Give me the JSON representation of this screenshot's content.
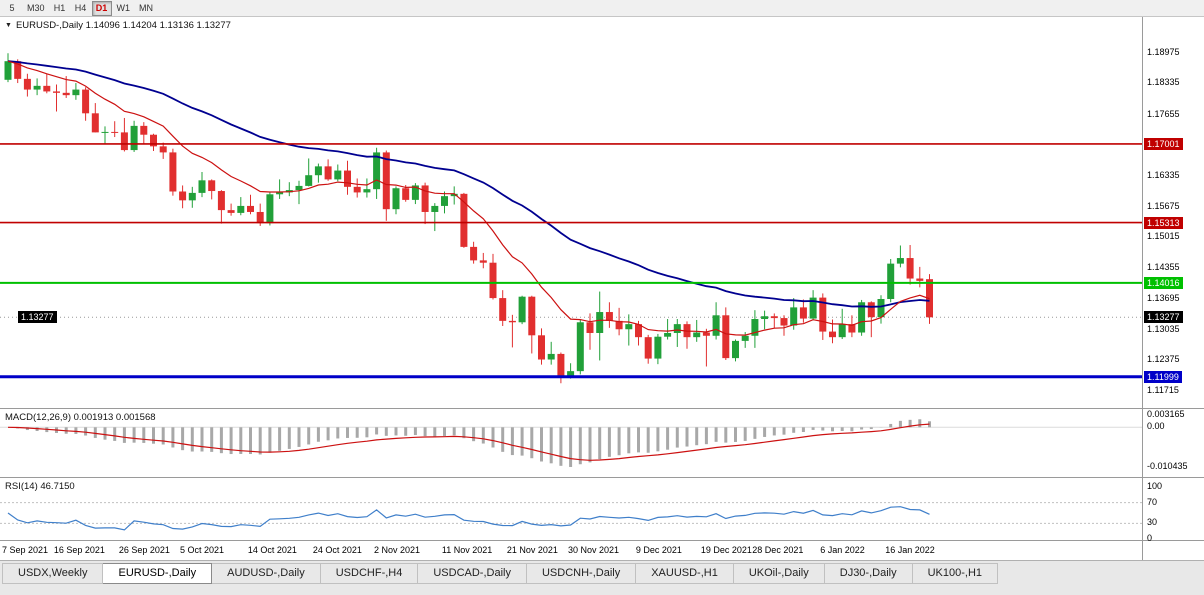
{
  "toolbar": {
    "timeframes": [
      {
        "label": "5",
        "active": false
      },
      {
        "label": "M30",
        "active": false
      },
      {
        "label": "H1",
        "active": false
      },
      {
        "label": "H4",
        "active": false
      },
      {
        "label": "D1",
        "active": true
      },
      {
        "label": "W1",
        "active": false
      },
      {
        "label": "MN",
        "active": false
      }
    ]
  },
  "chart_header": {
    "title": "EURUSD-,Daily  1.14096 1.14204 1.13136 1.13277",
    "current_price_label": "1.13277"
  },
  "macd_panel": {
    "label": "MACD(12,26,9) 0.001913 0.001568"
  },
  "rsi_panel": {
    "label": "RSI(14) 46.7150"
  },
  "chart_data": {
    "type": "candlestick",
    "symbol": "EURUSD-",
    "timeframe": "Daily",
    "up_color": "#21a039",
    "down_color": "#e12f2f",
    "ohlc_current": {
      "open": 1.14096,
      "high": 1.14204,
      "low": 1.13136,
      "close": 1.13277
    },
    "current_price": {
      "value": 1.13277,
      "label": "1.13277"
    },
    "price_axis_ticks": [
      "1.18975",
      "1.18335",
      "1.17655",
      "1.16335",
      "1.15675",
      "1.15015",
      "1.14355",
      "1.13695",
      "1.13035",
      "1.12375",
      "1.11715"
    ],
    "levels": [
      {
        "price": 1.17001,
        "label": "1.17001",
        "color": "#c00000",
        "width": 1.6
      },
      {
        "price": 1.15313,
        "label": "1.15313",
        "color": "#c00000",
        "width": 1.6
      },
      {
        "price": 1.14016,
        "label": "1.14016",
        "color": "#00c000",
        "width": 2
      },
      {
        "price": 1.11999,
        "label": "1.11999",
        "color": "#0000c8",
        "width": 3
      }
    ],
    "moving_averages": [
      {
        "period": 12,
        "color": "#cc1111",
        "width": 1.2
      },
      {
        "period": 40,
        "color": "#000090",
        "width": 1.8
      }
    ],
    "x_axis_labels": [
      {
        "label": "7 Sep 2021",
        "index": 0
      },
      {
        "label": "16 Sep 2021",
        "index": 7
      },
      {
        "label": "26 Sep 2021",
        "index": 13.7
      },
      {
        "label": "5 Oct 2021",
        "index": 20
      },
      {
        "label": "14 Oct 2021",
        "index": 27
      },
      {
        "label": "24 Oct 2021",
        "index": 33.7
      },
      {
        "label": "2 Nov 2021",
        "index": 40
      },
      {
        "label": "11 Nov 2021",
        "index": 47
      },
      {
        "label": "21 Nov 2021",
        "index": 53.7
      },
      {
        "label": "30 Nov 2021",
        "index": 60
      },
      {
        "label": "9 Dec 2021",
        "index": 67
      },
      {
        "label": "19 Dec 2021",
        "index": 73.7
      },
      {
        "label": "28 Dec 2021",
        "index": 79
      },
      {
        "label": "6 Jan 2022",
        "index": 86
      },
      {
        "label": "16 Jan 2022",
        "index": 92.7
      }
    ],
    "macd": {
      "fast": 12,
      "slow": 26,
      "signal": 9,
      "value": 0.001913,
      "signal_value": 0.001568,
      "histogram_color": "#a8a8a8",
      "signal_color": "#cc1111",
      "axis_labels": [
        {
          "value": 0.003165,
          "label": "0.003165"
        },
        {
          "value": 0,
          "label": "0.00"
        },
        {
          "value": -0.010435,
          "label": "-0.010435"
        }
      ]
    },
    "rsi": {
      "period": 14,
      "value": 46.715,
      "color": "#3f7fca",
      "levels": [
        70,
        30
      ],
      "axis_labels": [
        {
          "value": 100,
          "label": "100"
        },
        {
          "value": 70,
          "label": "70"
        },
        {
          "value": 30,
          "label": "30"
        },
        {
          "value": 0,
          "label": "0"
        }
      ]
    },
    "candles": [
      [
        1.1838,
        1.1895,
        1.1833,
        1.1878
      ],
      [
        1.1878,
        1.1882,
        1.1831,
        1.184
      ],
      [
        1.184,
        1.1851,
        1.1802,
        1.1817
      ],
      [
        1.1817,
        1.1841,
        1.1805,
        1.1825
      ],
      [
        1.1825,
        1.1851,
        1.1809,
        1.1813
      ],
      [
        1.1813,
        1.1828,
        1.177,
        1.181
      ],
      [
        1.181,
        1.1846,
        1.1799,
        1.1805
      ],
      [
        1.1805,
        1.1831,
        1.1795,
        1.1817
      ],
      [
        1.1817,
        1.1822,
        1.175,
        1.1766
      ],
      [
        1.1766,
        1.1788,
        1.1725,
        1.1725
      ],
      [
        1.1725,
        1.1738,
        1.17,
        1.1726
      ],
      [
        1.1726,
        1.1749,
        1.1715,
        1.1725
      ],
      [
        1.1725,
        1.1756,
        1.1684,
        1.1687
      ],
      [
        1.1687,
        1.175,
        1.1683,
        1.1739
      ],
      [
        1.1739,
        1.1747,
        1.1701,
        1.172
      ],
      [
        1.172,
        1.1722,
        1.1685,
        1.1695
      ],
      [
        1.1695,
        1.1703,
        1.1668,
        1.1682
      ],
      [
        1.1682,
        1.169,
        1.1589,
        1.1598
      ],
      [
        1.1598,
        1.1611,
        1.1562,
        1.1579
      ],
      [
        1.1579,
        1.1608,
        1.1563,
        1.1595
      ],
      [
        1.1595,
        1.164,
        1.1586,
        1.1622
      ],
      [
        1.1622,
        1.1624,
        1.1581,
        1.1599
      ],
      [
        1.1599,
        1.1601,
        1.1529,
        1.1558
      ],
      [
        1.1558,
        1.1572,
        1.1546,
        1.1552
      ],
      [
        1.1552,
        1.1586,
        1.1547,
        1.1567
      ],
      [
        1.1567,
        1.1591,
        1.1549,
        1.1554
      ],
      [
        1.1554,
        1.1572,
        1.1524,
        1.153
      ],
      [
        1.153,
        1.1597,
        1.1525,
        1.1592
      ],
      [
        1.1592,
        1.1624,
        1.1582,
        1.1596
      ],
      [
        1.1596,
        1.1618,
        1.1588,
        1.1601
      ],
      [
        1.1601,
        1.1621,
        1.1571,
        1.161
      ],
      [
        1.161,
        1.1669,
        1.1609,
        1.1633
      ],
      [
        1.1633,
        1.1658,
        1.1617,
        1.1652
      ],
      [
        1.1652,
        1.1667,
        1.1621,
        1.1624
      ],
      [
        1.1624,
        1.1656,
        1.162,
        1.1643
      ],
      [
        1.1643,
        1.1664,
        1.1591,
        1.1608
      ],
      [
        1.1608,
        1.1626,
        1.1585,
        1.1596
      ],
      [
        1.1596,
        1.1626,
        1.1585,
        1.1603
      ],
      [
        1.1603,
        1.1692,
        1.1582,
        1.1682
      ],
      [
        1.1682,
        1.1686,
        1.1535,
        1.156
      ],
      [
        1.156,
        1.1609,
        1.1549,
        1.1605
      ],
      [
        1.1605,
        1.1612,
        1.1576,
        1.158
      ],
      [
        1.158,
        1.1616,
        1.1571,
        1.1611
      ],
      [
        1.1611,
        1.1617,
        1.1528,
        1.1554
      ],
      [
        1.1554,
        1.1573,
        1.1513,
        1.1567
      ],
      [
        1.1567,
        1.1598,
        1.1551,
        1.1588
      ],
      [
        1.1588,
        1.1609,
        1.157,
        1.1593
      ],
      [
        1.1593,
        1.1595,
        1.1477,
        1.1479
      ],
      [
        1.1479,
        1.149,
        1.1443,
        1.145
      ],
      [
        1.145,
        1.1466,
        1.1433,
        1.1445
      ],
      [
        1.1445,
        1.1464,
        1.1366,
        1.1369
      ],
      [
        1.1369,
        1.1386,
        1.1309,
        1.132
      ],
      [
        1.132,
        1.1333,
        1.1263,
        1.1317
      ],
      [
        1.1317,
        1.1374,
        1.1313,
        1.1372
      ],
      [
        1.1372,
        1.1374,
        1.125,
        1.1289
      ],
      [
        1.1289,
        1.1304,
        1.1226,
        1.1237
      ],
      [
        1.1237,
        1.1275,
        1.1226,
        1.1249
      ],
      [
        1.1249,
        1.1252,
        1.1186,
        1.12
      ],
      [
        1.12,
        1.1229,
        1.1196,
        1.1212
      ],
      [
        1.1212,
        1.1323,
        1.1205,
        1.1317
      ],
      [
        1.1317,
        1.1336,
        1.1258,
        1.1294
      ],
      [
        1.1294,
        1.1383,
        1.1235,
        1.1339
      ],
      [
        1.1339,
        1.136,
        1.1305,
        1.132
      ],
      [
        1.132,
        1.1348,
        1.1289,
        1.1302
      ],
      [
        1.1302,
        1.1334,
        1.1267,
        1.1313
      ],
      [
        1.1313,
        1.132,
        1.1267,
        1.1285
      ],
      [
        1.1285,
        1.129,
        1.1228,
        1.1239
      ],
      [
        1.1239,
        1.1292,
        1.1227,
        1.1286
      ],
      [
        1.1286,
        1.1324,
        1.128,
        1.1294
      ],
      [
        1.1294,
        1.1324,
        1.1264,
        1.1313
      ],
      [
        1.1313,
        1.1319,
        1.126,
        1.1285
      ],
      [
        1.1285,
        1.1322,
        1.1275,
        1.1295
      ],
      [
        1.1295,
        1.1303,
        1.1222,
        1.1288
      ],
      [
        1.1288,
        1.136,
        1.128,
        1.1332
      ],
      [
        1.1332,
        1.1349,
        1.1236,
        1.124
      ],
      [
        1.124,
        1.128,
        1.1233,
        1.1277
      ],
      [
        1.1277,
        1.1296,
        1.1262,
        1.1288
      ],
      [
        1.1288,
        1.1343,
        1.1262,
        1.1324
      ],
      [
        1.1324,
        1.1342,
        1.1302,
        1.133
      ],
      [
        1.133,
        1.1336,
        1.1304,
        1.1326
      ],
      [
        1.1326,
        1.1332,
        1.1288,
        1.131
      ],
      [
        1.131,
        1.1369,
        1.1301,
        1.1349
      ],
      [
        1.1349,
        1.1366,
        1.1316,
        1.1325
      ],
      [
        1.1325,
        1.1386,
        1.1321,
        1.137
      ],
      [
        1.137,
        1.1379,
        1.1279,
        1.1297
      ],
      [
        1.1297,
        1.1323,
        1.1272,
        1.1285
      ],
      [
        1.1285,
        1.1346,
        1.1281,
        1.1313
      ],
      [
        1.1313,
        1.1332,
        1.1285,
        1.1295
      ],
      [
        1.1295,
        1.1365,
        1.1288,
        1.136
      ],
      [
        1.136,
        1.1362,
        1.1285,
        1.1328
      ],
      [
        1.1328,
        1.1375,
        1.1314,
        1.1367
      ],
      [
        1.1367,
        1.1453,
        1.136,
        1.1443
      ],
      [
        1.1443,
        1.1482,
        1.1435,
        1.1455
      ],
      [
        1.1455,
        1.1483,
        1.1398,
        1.1411
      ],
      [
        1.1411,
        1.1436,
        1.1392,
        1.1406
      ],
      [
        1.14096,
        1.14204,
        1.13136,
        1.13277
      ]
    ]
  },
  "tabs": [
    {
      "label": "USDX,Weekly",
      "active": false
    },
    {
      "label": "EURUSD-,Daily",
      "active": true
    },
    {
      "label": "AUDUSD-,Daily",
      "active": false
    },
    {
      "label": "USDCHF-,H4",
      "active": false
    },
    {
      "label": "USDCAD-,Daily",
      "active": false
    },
    {
      "label": "USDCNH-,Daily",
      "active": false
    },
    {
      "label": "XAUUSD-,H1",
      "active": false
    },
    {
      "label": "UKOil-,Daily",
      "active": false
    },
    {
      "label": "DJ30-,Daily",
      "active": false
    },
    {
      "label": "UK100-,H1",
      "active": false
    }
  ]
}
